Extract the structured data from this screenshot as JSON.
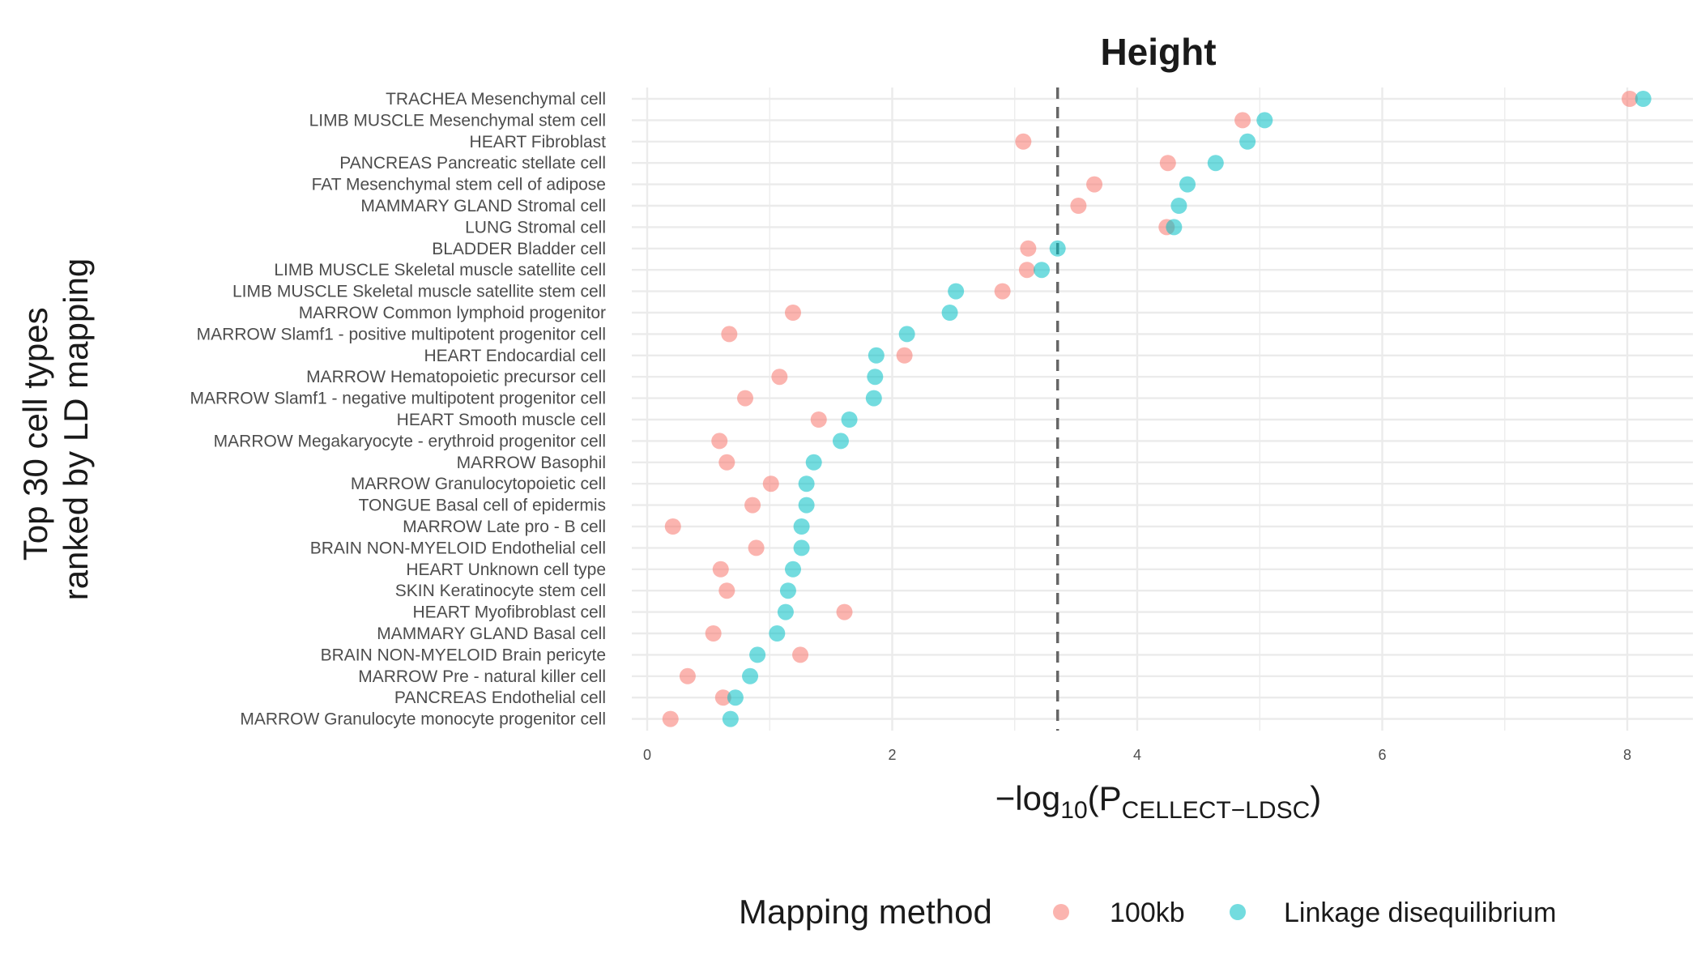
{
  "chart_data": {
    "type": "scatter",
    "title": "Height",
    "xlabel": {
      "prefix": "−log",
      "base": "10",
      "open": "(P",
      "sub": "CELLECT−LDSC",
      "close": ")"
    },
    "ylabel_lines": [
      "Top 30 cell types",
      "ranked by LD mapping"
    ],
    "xlim": [
      -0.1,
      8.55
    ],
    "xticks": [
      0,
      2,
      4,
      6,
      8
    ],
    "grid": true,
    "reference_line": {
      "x": 3.35,
      "style": "dashed",
      "color": "#666666"
    },
    "legend": {
      "title": "Mapping method",
      "placement": "bottom"
    },
    "categories": [
      "TRACHEA Mesenchymal cell",
      "LIMB MUSCLE Mesenchymal stem cell",
      "HEART Fibroblast",
      "PANCREAS Pancreatic stellate cell",
      "FAT Mesenchymal stem cell of adipose",
      "MAMMARY GLAND Stromal cell",
      "LUNG Stromal cell",
      "BLADDER Bladder cell",
      "LIMB MUSCLE Skeletal muscle satellite cell",
      "LIMB MUSCLE Skeletal muscle satellite stem cell",
      "MARROW Common lymphoid progenitor",
      "MARROW Slamf1 - positive multipotent progenitor cell",
      "HEART Endocardial cell",
      "MARROW Hematopoietic precursor cell",
      "MARROW Slamf1 - negative multipotent progenitor cell",
      "HEART Smooth muscle cell",
      "MARROW Megakaryocyte - erythroid progenitor cell",
      "MARROW Basophil",
      "MARROW Granulocytopoietic cell",
      "TONGUE Basal cell of epidermis",
      "MARROW Late pro - B cell",
      "BRAIN NON-MYELOID Endothelial cell",
      "HEART Unknown cell type",
      "SKIN Keratinocyte stem cell",
      "HEART Myofibroblast cell",
      "MAMMARY GLAND Basal cell",
      "BRAIN NON-MYELOID Brain pericyte",
      "MARROW Pre - natural killer cell",
      "PANCREAS Endothelial cell",
      "MARROW Granulocyte monocyte progenitor cell"
    ],
    "series": [
      {
        "name": "100kb",
        "color": "#F8766D",
        "values": [
          8.02,
          4.86,
          3.07,
          4.25,
          3.65,
          3.52,
          4.24,
          3.11,
          3.1,
          2.9,
          1.19,
          0.67,
          2.1,
          1.08,
          0.8,
          1.4,
          0.59,
          0.65,
          1.01,
          0.86,
          0.21,
          0.89,
          0.6,
          0.65,
          1.61,
          0.54,
          1.25,
          0.33,
          0.62,
          0.19
        ]
      },
      {
        "name": "Linkage disequilibrium",
        "color": "#00BFC4",
        "values": [
          8.13,
          5.04,
          4.9,
          4.64,
          4.41,
          4.34,
          4.3,
          3.35,
          3.22,
          2.52,
          2.47,
          2.12,
          1.87,
          1.86,
          1.85,
          1.65,
          1.58,
          1.36,
          1.3,
          1.3,
          1.26,
          1.26,
          1.19,
          1.15,
          1.13,
          1.06,
          0.9,
          0.84,
          0.72,
          0.68
        ]
      }
    ]
  }
}
